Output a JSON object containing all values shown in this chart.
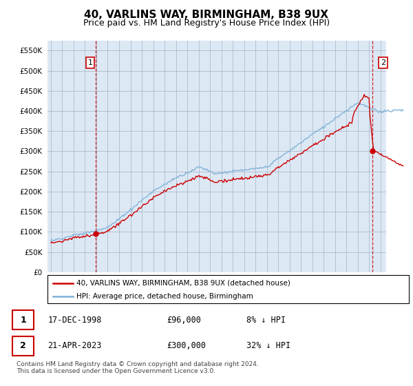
{
  "title": "40, VARLINS WAY, BIRMINGHAM, B38 9UX",
  "subtitle": "Price paid vs. HM Land Registry's House Price Index (HPI)",
  "title_fontsize": 11,
  "subtitle_fontsize": 9,
  "ytick_values": [
    0,
    50000,
    100000,
    150000,
    200000,
    250000,
    300000,
    350000,
    400000,
    450000,
    500000,
    550000
  ],
  "ylim": [
    0,
    575000
  ],
  "xlim_start": 1994.7,
  "xlim_end": 2026.5,
  "hpi_color": "#7aafd4",
  "sale_color": "#cc0000",
  "vline_color": "#cc0000",
  "bg_chart_color": "#dde8f5",
  "background_color": "#ffffff",
  "grid_color": "#aabbcc",
  "sale1_x": 1998.96,
  "sale1_y": 96000,
  "sale2_x": 2023.31,
  "sale2_y": 300000,
  "legend_label_sale": "40, VARLINS WAY, BIRMINGHAM, B38 9UX (detached house)",
  "legend_label_hpi": "HPI: Average price, detached house, Birmingham",
  "table_row1": [
    "1",
    "17-DEC-1998",
    "£96,000",
    "8% ↓ HPI"
  ],
  "table_row2": [
    "2",
    "21-APR-2023",
    "£300,000",
    "32% ↓ HPI"
  ],
  "footer": "Contains HM Land Registry data © Crown copyright and database right 2024.\nThis data is licensed under the Open Government Licence v3.0.",
  "hatch_start": 2024.5
}
